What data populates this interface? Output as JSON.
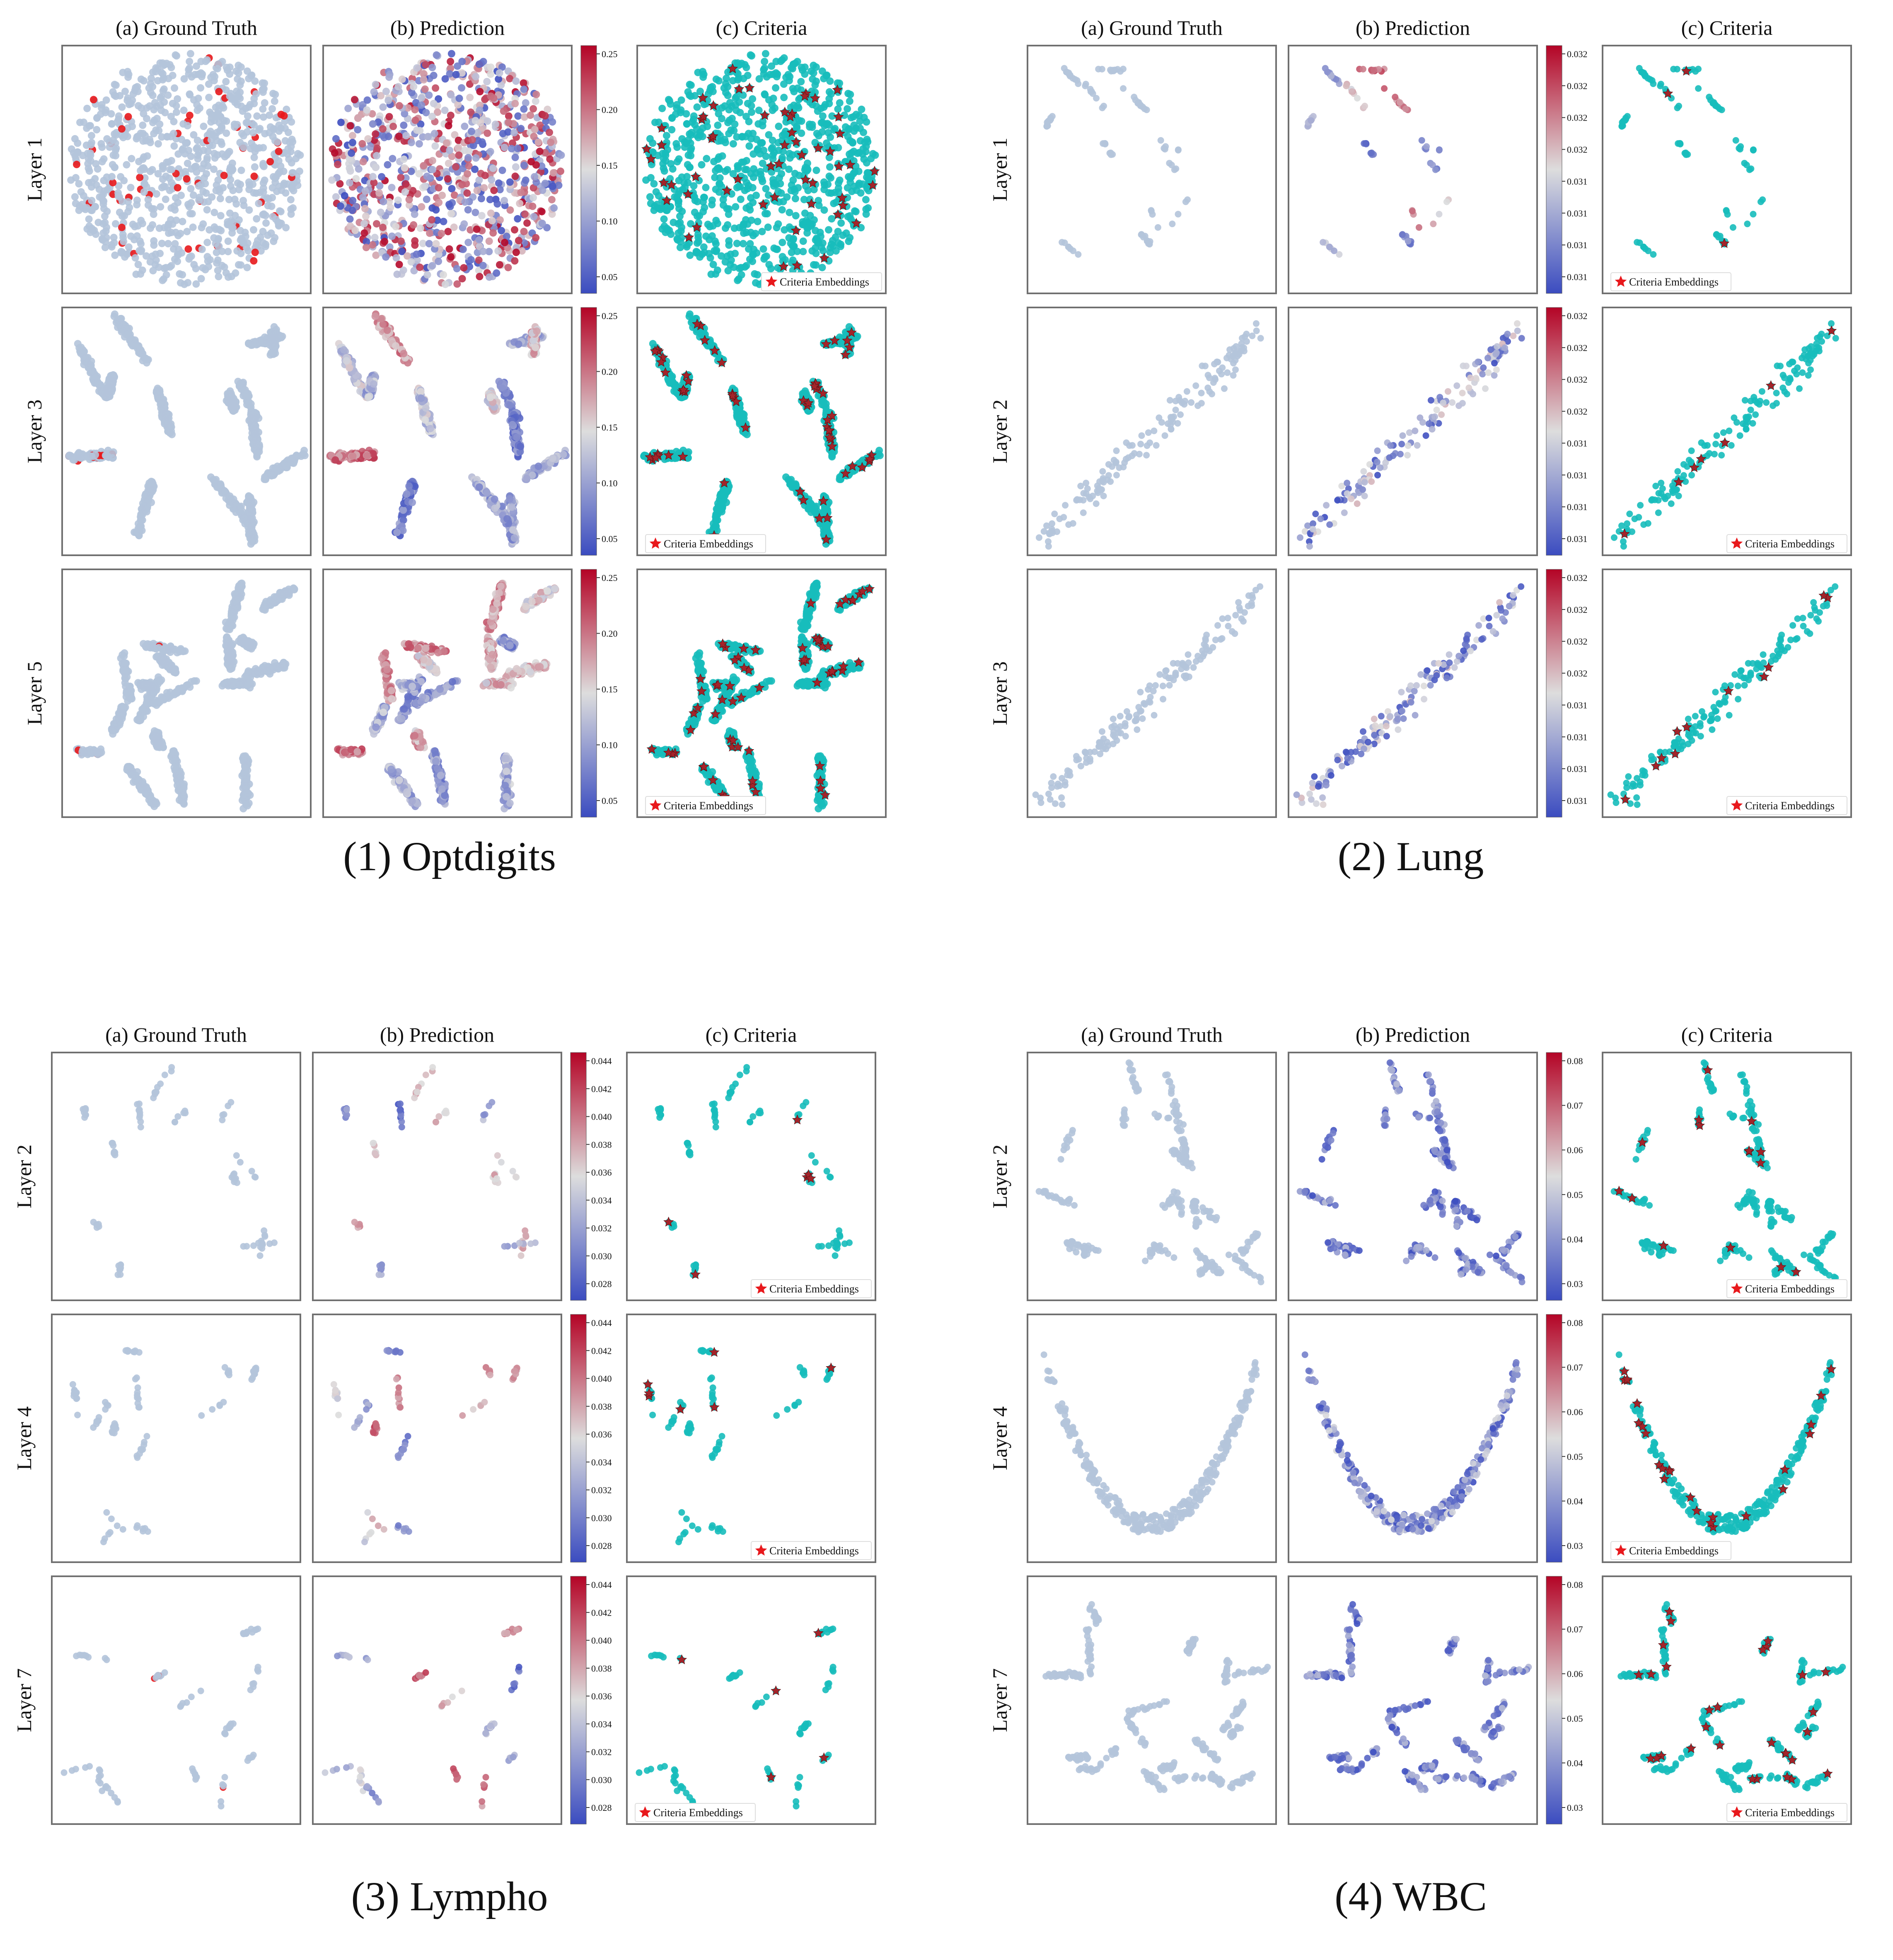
{
  "column_titles": [
    "(a) Ground Truth",
    "(b) Prediction",
    "(c) Criteria"
  ],
  "legend_label": "Criteria Embeddings",
  "colors": {
    "ground_truth_normal": "#b4c4da",
    "ground_truth_anomaly": "#e8181c",
    "criteria_points": "#17bdbb",
    "criteria_star": "#a3242a",
    "legend_star": "#e8181c",
    "colormap_low": "#3b4cc0",
    "colormap_mid": "#dddddd",
    "colormap_high": "#b40426"
  },
  "chart_data": [
    {
      "type": "scatter",
      "title": "(1) Optdigits",
      "rows": [
        "Layer 1",
        "Layer 3",
        "Layer 5"
      ],
      "colorbar_ticks": [
        [
          "0.25",
          "0.20",
          "0.15",
          "0.10",
          "0.05"
        ],
        [
          "0.25",
          "0.20",
          "0.15",
          "0.10",
          "0.05"
        ],
        [
          "0.25",
          "0.20",
          "0.15",
          "0.10",
          "0.05"
        ]
      ],
      "colorbar_range": [
        0.01,
        0.255
      ],
      "legend_position": [
        "lower-right",
        "lower-left",
        "lower-left"
      ]
    },
    {
      "type": "scatter",
      "title": "(2) Lung",
      "rows": [
        "Layer 1",
        "Layer 2",
        "Layer 3"
      ],
      "colorbar_ticks": [
        [
          "0.032",
          "0.032",
          "0.032",
          "0.032",
          "0.031",
          "0.031",
          "0.031",
          "0.031"
        ],
        [
          "0.032",
          "0.032",
          "0.032",
          "0.032",
          "0.031",
          "0.031",
          "0.031",
          "0.031"
        ],
        [
          "0.032",
          "0.032",
          "0.032",
          "0.032",
          "0.031",
          "0.031",
          "0.031",
          "0.031"
        ]
      ],
      "colorbar_range": [
        0.0305,
        0.0325
      ],
      "legend_position": [
        "lower-left",
        "lower-right",
        "lower-right"
      ]
    },
    {
      "type": "scatter",
      "title": "(3) Lympho",
      "rows": [
        "Layer 2",
        "Layer 4",
        "Layer 7"
      ],
      "colorbar_ticks": [
        [
          "0.044",
          "0.042",
          "0.040",
          "0.038",
          "0.036",
          "0.034",
          "0.032",
          "0.030",
          "0.028"
        ],
        [
          "0.044",
          "0.042",
          "0.040",
          "0.038",
          "0.036",
          "0.034",
          "0.032",
          "0.030",
          "0.028"
        ],
        [
          "0.044",
          "0.042",
          "0.040",
          "0.038",
          "0.036",
          "0.034",
          "0.032",
          "0.030",
          "0.028"
        ]
      ],
      "colorbar_range": [
        0.028,
        0.044
      ],
      "legend_position": [
        "lower-right",
        "lower-right",
        "lower-left"
      ]
    },
    {
      "type": "scatter",
      "title": "(4) WBC",
      "rows": [
        "Layer 2",
        "Layer 4",
        "Layer 7"
      ],
      "colorbar_ticks": [
        [
          "0.08",
          "0.07",
          "0.06",
          "0.05",
          "0.04",
          "0.03"
        ],
        [
          "0.08",
          "0.07",
          "0.06",
          "0.05",
          "0.04",
          "0.03"
        ],
        [
          "0.08",
          "0.07",
          "0.06",
          "0.05",
          "0.04",
          "0.03"
        ]
      ],
      "colorbar_range": [
        0.03,
        0.086
      ],
      "legend_position": [
        "lower-right",
        "lower-left",
        "lower-right"
      ]
    }
  ]
}
